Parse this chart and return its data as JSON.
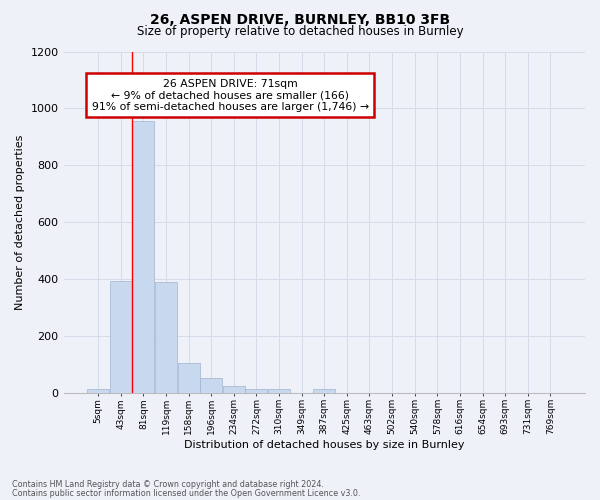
{
  "title1": "26, ASPEN DRIVE, BURNLEY, BB10 3FB",
  "title2": "Size of property relative to detached houses in Burnley",
  "xlabel": "Distribution of detached houses by size in Burnley",
  "ylabel": "Number of detached properties",
  "categories": [
    "5sqm",
    "43sqm",
    "81sqm",
    "119sqm",
    "158sqm",
    "196sqm",
    "234sqm",
    "272sqm",
    "310sqm",
    "349sqm",
    "387sqm",
    "425sqm",
    "463sqm",
    "502sqm",
    "540sqm",
    "578sqm",
    "616sqm",
    "654sqm",
    "693sqm",
    "731sqm",
    "769sqm"
  ],
  "values": [
    13,
    393,
    955,
    390,
    103,
    52,
    24,
    13,
    12,
    0,
    13,
    0,
    0,
    0,
    0,
    0,
    0,
    0,
    0,
    0,
    0
  ],
  "bar_color": "#c8d8ee",
  "bar_edge_color": "#a0b4d0",
  "grid_color": "#d4dcea",
  "background_color": "#eef1f8",
  "red_line_x": 1.5,
  "annotation_text": "26 ASPEN DRIVE: 71sqm\n← 9% of detached houses are smaller (166)\n91% of semi-detached houses are larger (1,746) →",
  "annotation_box_color": "#ffffff",
  "annotation_box_edge": "#cc0000",
  "footnote1": "Contains HM Land Registry data © Crown copyright and database right 2024.",
  "footnote2": "Contains public sector information licensed under the Open Government Licence v3.0.",
  "ylim": [
    0,
    1200
  ],
  "yticks": [
    0,
    200,
    400,
    600,
    800,
    1000,
    1200
  ]
}
